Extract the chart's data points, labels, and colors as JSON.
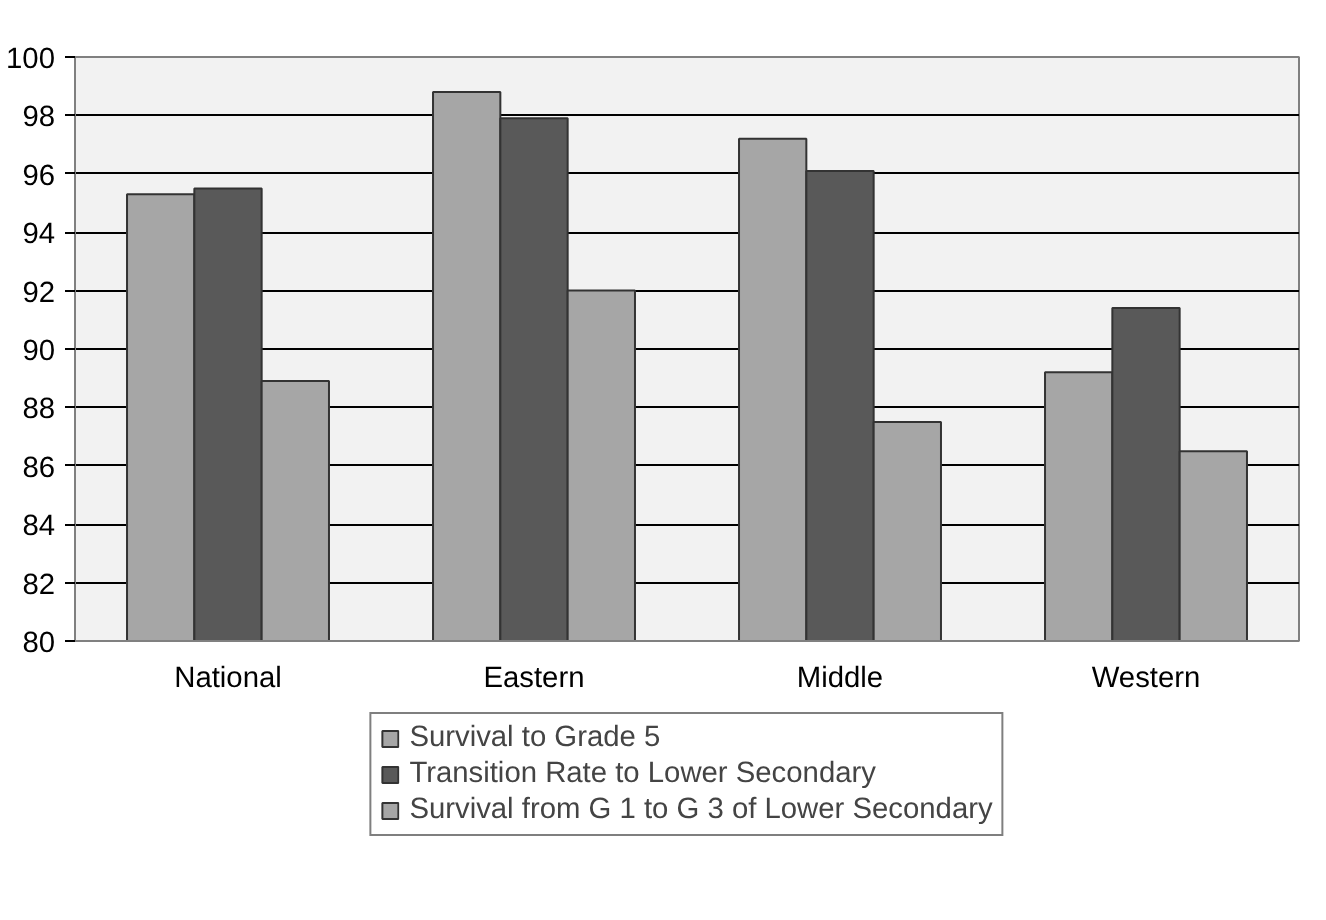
{
  "chart_data": {
    "type": "bar",
    "categories": [
      "National",
      "Eastern",
      "Middle",
      "Western"
    ],
    "series": [
      {
        "name": "Survival to Grade 5",
        "color": "#a6a6a6",
        "values": [
          95.3,
          98.8,
          97.2,
          89.2
        ]
      },
      {
        "name": "Transition Rate to Lower Secondary",
        "color": "#595959",
        "values": [
          95.5,
          97.9,
          96.1,
          91.4
        ]
      },
      {
        "name": "Survival from G 1 to G 3 of Lower Secondary",
        "color": "#a6a6a6",
        "values": [
          88.9,
          92.0,
          87.5,
          86.5
        ]
      }
    ],
    "ylim": [
      80,
      100
    ],
    "yticks": [
      80,
      82,
      84,
      86,
      88,
      90,
      92,
      94,
      96,
      98,
      100
    ],
    "grid": "y",
    "legend": "bottom"
  }
}
